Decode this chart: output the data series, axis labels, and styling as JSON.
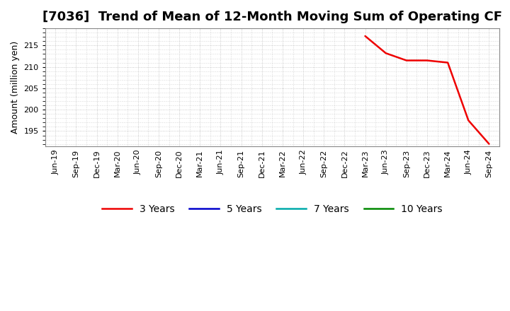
{
  "title": "[7036]  Trend of Mean of 12-Month Moving Sum of Operating CF",
  "ylabel": "Amount (million yen)",
  "ylim": [
    191.5,
    219.0
  ],
  "yticks": [
    195,
    200,
    205,
    210,
    215
  ],
  "background_color": "#ffffff",
  "plot_bg_color": "#ffffff",
  "grid_color": "#bbbbbb",
  "x_labels": [
    "Jun-19",
    "Sep-19",
    "Dec-19",
    "Mar-20",
    "Jun-20",
    "Sep-20",
    "Dec-20",
    "Mar-21",
    "Jun-21",
    "Sep-21",
    "Dec-21",
    "Mar-22",
    "Jun-22",
    "Sep-22",
    "Dec-22",
    "Mar-23",
    "Jun-23",
    "Sep-23",
    "Dec-23",
    "Mar-24",
    "Jun-24",
    "Sep-24"
  ],
  "series_3y": {
    "x_indices": [
      15,
      16,
      17,
      18,
      19,
      20,
      21
    ],
    "values": [
      217.2,
      213.2,
      211.5,
      211.5,
      211.0,
      197.5,
      192.0
    ],
    "color": "#ee0000",
    "label": "3 Years",
    "linewidth": 1.8
  },
  "series_5y": {
    "color": "#0000cc",
    "label": "5 Years",
    "linewidth": 1.8
  },
  "series_7y": {
    "color": "#00aaaa",
    "label": "7 Years",
    "linewidth": 1.8
  },
  "series_10y": {
    "color": "#008800",
    "label": "10 Years",
    "linewidth": 1.8
  },
  "legend_ncol": 4,
  "title_fontsize": 13,
  "axis_fontsize": 9,
  "tick_fontsize": 8
}
